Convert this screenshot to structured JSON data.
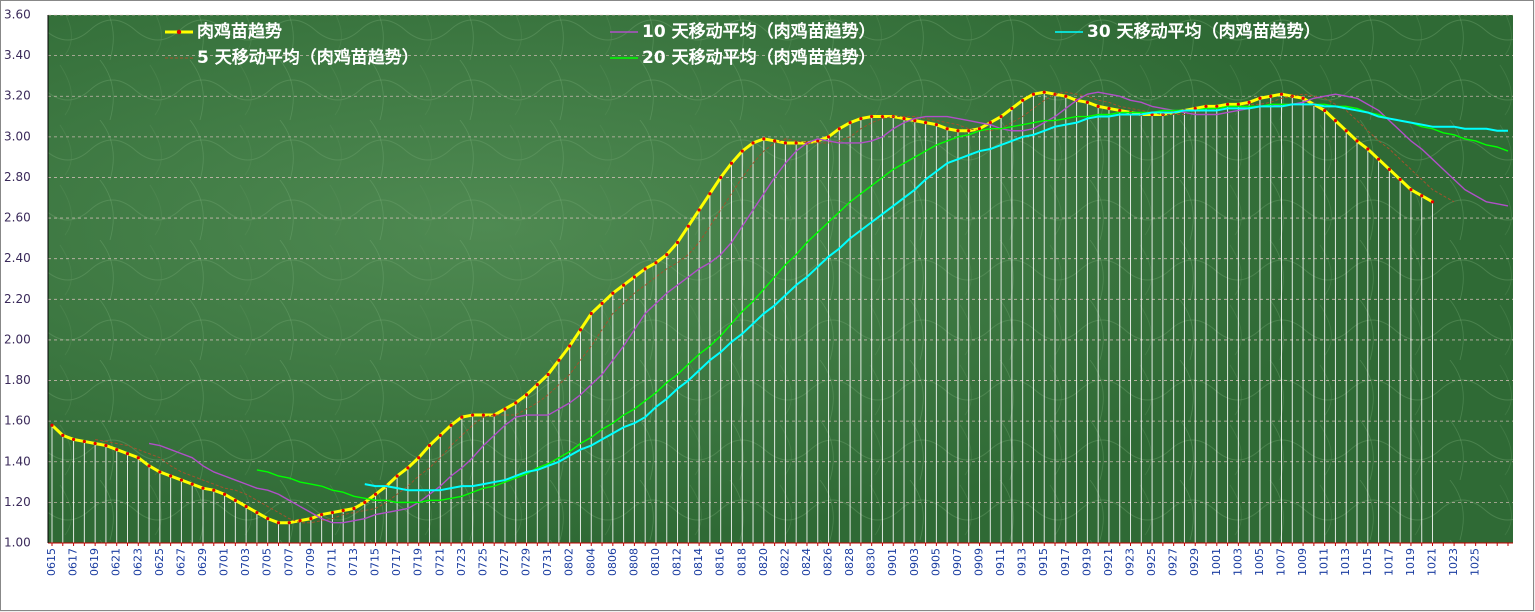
{
  "chart_data": {
    "type": "line",
    "categories": [
      "0615",
      null,
      "0617",
      null,
      "0619",
      null,
      "0621",
      null,
      "0623",
      null,
      "0625",
      null,
      "0627",
      null,
      "0629",
      null,
      "0701",
      null,
      "0703",
      null,
      "0705",
      null,
      "0707",
      null,
      "0709",
      null,
      "0711",
      null,
      "0713",
      null,
      "0715",
      null,
      "0717",
      null,
      "0719",
      null,
      "0721",
      null,
      "0723",
      null,
      "0725",
      null,
      "0727",
      null,
      "0729",
      null,
      "0731",
      null,
      "0802",
      null,
      "0804",
      null,
      "0806",
      null,
      "0808",
      null,
      "0810",
      null,
      "0812",
      null,
      "0814",
      null,
      "0816",
      null,
      "0818",
      null,
      "0820",
      null,
      "0822",
      null,
      "0824",
      null,
      "0826",
      null,
      "0828",
      null,
      "0830",
      null,
      "0901",
      null,
      "0903",
      null,
      "0905",
      null,
      "0907",
      null,
      "0909",
      null,
      "0911",
      null,
      "0913",
      null,
      "0915",
      null,
      "0917",
      null,
      "0919",
      null,
      "0921",
      null,
      "0923",
      null,
      "0925",
      null,
      "0927",
      null,
      "0929",
      null,
      "1001",
      null,
      "1003",
      null,
      "1005",
      null,
      "1007",
      null,
      "1009",
      null,
      "1011",
      null,
      "1013",
      null,
      "1015",
      null,
      "1017",
      null,
      "1019",
      null,
      "1021",
      null,
      "1023",
      null,
      "1025",
      null,
      null,
      null
    ],
    "series": [
      {
        "name": "肉鸡苗趋势",
        "color": "#ffff00",
        "values": [
          1.58,
          1.53,
          1.51,
          1.5,
          1.49,
          1.48,
          1.46,
          1.44,
          1.42,
          1.38,
          1.35,
          1.33,
          1.31,
          1.29,
          1.27,
          1.26,
          1.24,
          1.21,
          1.18,
          1.15,
          1.12,
          1.1,
          1.1,
          1.11,
          1.12,
          1.14,
          1.15,
          1.16,
          1.17,
          1.2,
          1.24,
          1.28,
          1.33,
          1.37,
          1.42,
          1.48,
          1.53,
          1.58,
          1.62,
          1.63,
          1.63,
          1.63,
          1.66,
          1.69,
          1.73,
          1.78,
          1.83,
          1.9,
          1.97,
          2.05,
          2.13,
          2.18,
          2.23,
          2.27,
          2.31,
          2.35,
          2.38,
          2.42,
          2.48,
          2.56,
          2.64,
          2.72,
          2.8,
          2.87,
          2.93,
          2.97,
          2.99,
          2.98,
          2.97,
          2.97,
          2.97,
          2.98,
          3.0,
          3.04,
          3.07,
          3.09,
          3.1,
          3.1,
          3.1,
          3.09,
          3.08,
          3.07,
          3.06,
          3.04,
          3.03,
          3.03,
          3.04,
          3.07,
          3.1,
          3.14,
          3.18,
          3.21,
          3.22,
          3.21,
          3.2,
          3.18,
          3.17,
          3.15,
          3.14,
          3.13,
          3.12,
          3.11,
          3.11,
          3.11,
          3.12,
          3.13,
          3.14,
          3.15,
          3.15,
          3.16,
          3.16,
          3.17,
          3.19,
          3.2,
          3.21,
          3.2,
          3.19,
          3.16,
          3.13,
          3.08,
          3.03,
          2.98,
          2.94,
          2.89,
          2.84,
          2.79,
          2.74,
          2.71,
          2.68,
          null,
          null,
          null,
          null,
          null,
          null,
          null
        ]
      },
      {
        "name": "5 天移动平均（肉鸡苗趋势）",
        "color": "#a0522d",
        "values": [
          null,
          null,
          null,
          null,
          1.51,
          1.5,
          1.49,
          1.48,
          1.46,
          1.44,
          1.42,
          1.38,
          1.35,
          1.33,
          1.31,
          1.29,
          1.27,
          1.26,
          1.24,
          1.21,
          1.18,
          1.15,
          1.12,
          1.1,
          1.1,
          1.11,
          1.12,
          1.14,
          1.15,
          1.16,
          1.17,
          1.2,
          1.24,
          1.28,
          1.33,
          1.37,
          1.42,
          1.48,
          1.53,
          1.58,
          1.62,
          1.63,
          1.63,
          1.63,
          1.66,
          1.69,
          1.73,
          1.78,
          1.83,
          1.9,
          1.97,
          2.05,
          2.13,
          2.18,
          2.23,
          2.27,
          2.31,
          2.35,
          2.38,
          2.42,
          2.48,
          2.56,
          2.64,
          2.72,
          2.8,
          2.87,
          2.93,
          2.97,
          2.99,
          2.98,
          2.97,
          2.97,
          2.97,
          2.98,
          3.0,
          3.04,
          3.07,
          3.09,
          3.1,
          3.1,
          3.1,
          3.09,
          3.08,
          3.07,
          3.06,
          3.04,
          3.03,
          3.03,
          3.04,
          3.07,
          3.1,
          3.14,
          3.18,
          3.21,
          3.22,
          3.21,
          3.2,
          3.18,
          3.17,
          3.15,
          3.14,
          3.13,
          3.12,
          3.11,
          3.11,
          3.11,
          3.12,
          3.13,
          3.14,
          3.15,
          3.15,
          3.16,
          3.16,
          3.17,
          3.19,
          3.2,
          3.21,
          3.2,
          3.19,
          3.16,
          3.13,
          3.08,
          3.03,
          2.98,
          2.94,
          2.89,
          2.84,
          2.79,
          2.74,
          2.71,
          2.68,
          null,
          null,
          null,
          null,
          null
        ]
      },
      {
        "name": "10 天移动平均（肉鸡苗趋势）",
        "color": "#b050c8",
        "values": [
          null,
          null,
          null,
          null,
          null,
          null,
          null,
          null,
          null,
          1.49,
          1.48,
          1.46,
          1.44,
          1.42,
          1.38,
          1.35,
          1.33,
          1.31,
          1.29,
          1.27,
          1.26,
          1.24,
          1.21,
          1.18,
          1.15,
          1.12,
          1.1,
          1.1,
          1.11,
          1.12,
          1.14,
          1.15,
          1.16,
          1.17,
          1.2,
          1.24,
          1.28,
          1.33,
          1.37,
          1.42,
          1.48,
          1.53,
          1.58,
          1.62,
          1.63,
          1.63,
          1.63,
          1.66,
          1.69,
          1.73,
          1.78,
          1.83,
          1.9,
          1.97,
          2.05,
          2.13,
          2.18,
          2.23,
          2.27,
          2.31,
          2.35,
          2.38,
          2.42,
          2.48,
          2.56,
          2.64,
          2.72,
          2.8,
          2.87,
          2.93,
          2.97,
          2.99,
          2.98,
          2.97,
          2.97,
          2.97,
          2.98,
          3.0,
          3.04,
          3.07,
          3.09,
          3.1,
          3.1,
          3.1,
          3.09,
          3.08,
          3.07,
          3.06,
          3.04,
          3.03,
          3.03,
          3.04,
          3.07,
          3.1,
          3.14,
          3.18,
          3.21,
          3.22,
          3.21,
          3.2,
          3.18,
          3.17,
          3.15,
          3.14,
          3.13,
          3.12,
          3.11,
          3.11,
          3.11,
          3.12,
          3.13,
          3.14,
          3.15,
          3.15,
          3.16,
          3.16,
          3.17,
          3.19,
          3.2,
          3.21,
          3.2,
          3.19,
          3.16,
          3.13,
          3.08,
          3.03,
          2.98,
          2.94,
          2.89,
          2.84,
          2.79,
          2.74,
          2.71,
          2.68,
          2.67,
          2.66
        ]
      },
      {
        "name": "20 天移动平均（肉鸡苗趋势）",
        "color": "#00ff00",
        "values": [
          null,
          null,
          null,
          null,
          null,
          null,
          null,
          null,
          null,
          null,
          null,
          null,
          null,
          null,
          null,
          null,
          null,
          null,
          null,
          1.36,
          1.35,
          1.33,
          1.32,
          1.3,
          1.29,
          1.28,
          1.26,
          1.25,
          1.23,
          1.22,
          1.21,
          1.21,
          1.2,
          1.2,
          1.2,
          1.21,
          1.21,
          1.22,
          1.23,
          1.25,
          1.27,
          1.28,
          1.3,
          1.32,
          1.34,
          1.37,
          1.39,
          1.42,
          1.45,
          1.49,
          1.52,
          1.56,
          1.59,
          1.63,
          1.66,
          1.7,
          1.74,
          1.79,
          1.83,
          1.88,
          1.93,
          1.97,
          2.02,
          2.08,
          2.14,
          2.19,
          2.25,
          2.31,
          2.37,
          2.42,
          2.48,
          2.53,
          2.58,
          2.63,
          2.68,
          2.72,
          2.76,
          2.8,
          2.84,
          2.87,
          2.9,
          2.93,
          2.96,
          2.98,
          3.0,
          3.01,
          3.03,
          3.04,
          3.04,
          3.05,
          3.06,
          3.07,
          3.08,
          3.08,
          3.09,
          3.1,
          3.1,
          3.11,
          3.11,
          3.12,
          3.12,
          3.12,
          3.12,
          3.13,
          3.13,
          3.13,
          3.13,
          3.14,
          3.14,
          3.15,
          3.15,
          3.15,
          3.15,
          3.16,
          3.16,
          3.16,
          3.16,
          3.16,
          3.16,
          3.15,
          3.15,
          3.14,
          3.12,
          3.11,
          3.09,
          3.08,
          3.07,
          3.05,
          3.04,
          3.02,
          3.01,
          2.99,
          2.98,
          2.96,
          2.95,
          2.93
        ]
      },
      {
        "name": "30 天移动平均（肉鸡苗趋势）",
        "color": "#00ffff",
        "values": [
          null,
          null,
          null,
          null,
          null,
          null,
          null,
          null,
          null,
          null,
          null,
          null,
          null,
          null,
          null,
          null,
          null,
          null,
          null,
          null,
          null,
          null,
          null,
          null,
          null,
          null,
          null,
          null,
          null,
          1.29,
          1.28,
          1.28,
          1.27,
          1.26,
          1.26,
          1.26,
          1.26,
          1.27,
          1.28,
          1.28,
          1.29,
          1.3,
          1.31,
          1.33,
          1.35,
          1.36,
          1.38,
          1.4,
          1.43,
          1.46,
          1.48,
          1.51,
          1.54,
          1.57,
          1.59,
          1.62,
          1.67,
          1.71,
          1.76,
          1.8,
          1.85,
          1.9,
          1.94,
          1.99,
          2.03,
          2.08,
          2.13,
          2.17,
          2.22,
          2.27,
          2.31,
          2.36,
          2.41,
          2.45,
          2.5,
          2.54,
          2.58,
          2.62,
          2.66,
          2.7,
          2.74,
          2.79,
          2.83,
          2.87,
          2.89,
          2.91,
          2.93,
          2.94,
          2.96,
          2.98,
          3.0,
          3.01,
          3.03,
          3.05,
          3.06,
          3.07,
          3.09,
          3.1,
          3.1,
          3.11,
          3.11,
          3.11,
          3.12,
          3.12,
          3.12,
          3.13,
          3.13,
          3.13,
          3.13,
          3.14,
          3.14,
          3.14,
          3.15,
          3.15,
          3.15,
          3.16,
          3.16,
          3.16,
          3.15,
          3.15,
          3.14,
          3.13,
          3.12,
          3.1,
          3.09,
          3.08,
          3.07,
          3.06,
          3.05,
          3.05,
          3.05,
          3.04,
          3.04,
          3.04,
          3.03,
          3.03
        ]
      }
    ],
    "ylim": [
      1.0,
      3.6
    ],
    "yticks": [
      {
        "value": 1.0,
        "label": "1.00"
      },
      {
        "value": 1.2,
        "label": "1.20"
      },
      {
        "value": 1.4,
        "label": "1.40"
      },
      {
        "value": 1.6,
        "label": "1.60"
      },
      {
        "value": 1.8,
        "label": "1.80"
      },
      {
        "value": 2.0,
        "label": "2.00"
      },
      {
        "value": 2.2,
        "label": "2.20"
      },
      {
        "value": 2.4,
        "label": "2.40"
      },
      {
        "value": 2.6,
        "label": "2.60"
      },
      {
        "value": 2.8,
        "label": "2.80"
      },
      {
        "value": 3.0,
        "label": "3.00"
      },
      {
        "value": 3.2,
        "label": "3.20"
      },
      {
        "value": 3.4,
        "label": "3.40"
      },
      {
        "value": 3.6,
        "label": "3.60"
      }
    ],
    "grid": true,
    "drop_lines": true,
    "marker_color": "#e00000"
  }
}
